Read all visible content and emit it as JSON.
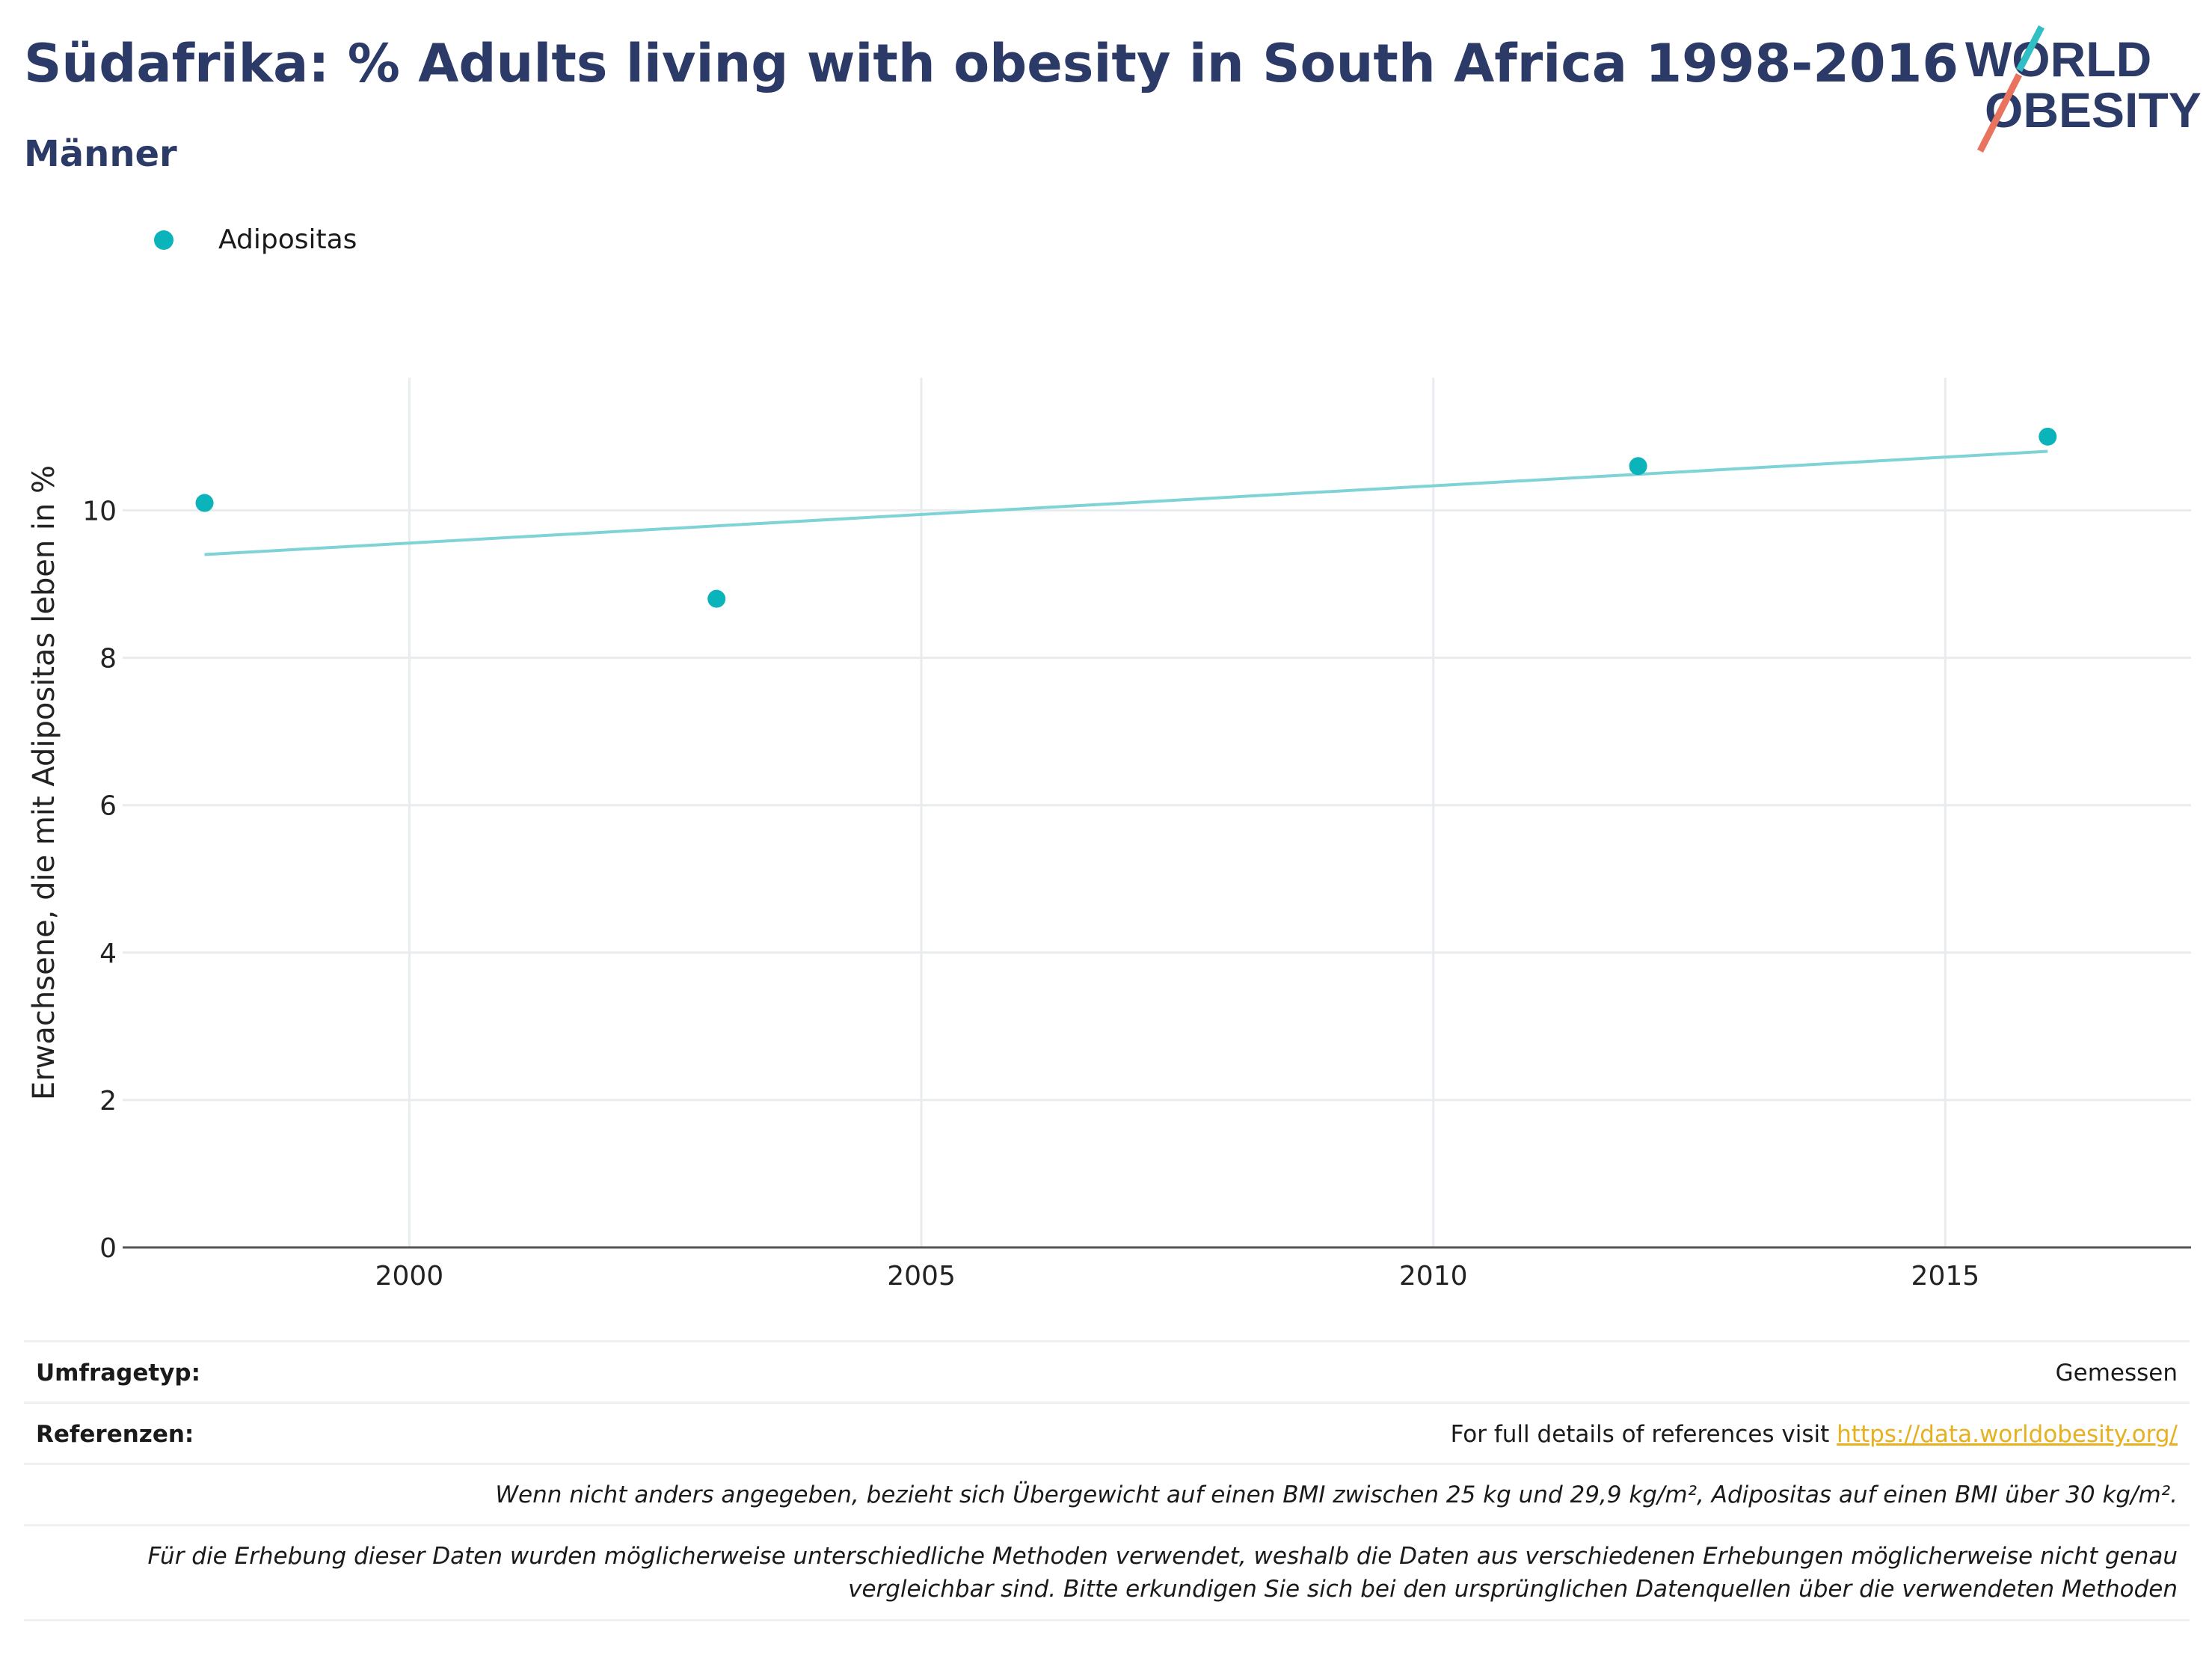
{
  "header": {
    "title": "Südafrika: % Adults living with obesity in South Africa 1998-2016",
    "subtitle": "Männer"
  },
  "logo": {
    "line1": "WORLD",
    "line2": "OBESITY"
  },
  "legend": {
    "label": "Adipositas"
  },
  "colors": {
    "accent": "#0bb3bb",
    "trend": "#7fd3d6",
    "title": "#2b3a67",
    "link": "#e6b01e"
  },
  "chart_data": {
    "type": "scatter",
    "ylabel": "Erwachsene, die mit Adipositas leben in %",
    "xlabel": "",
    "xlim": [
      1997.2,
      2017.4
    ],
    "ylim": [
      0,
      11.8
    ],
    "x_ticks": [
      2000,
      2005,
      2010,
      2015
    ],
    "y_ticks": [
      0,
      2,
      4,
      6,
      8,
      10
    ],
    "grid": true,
    "legend_position": "top-left",
    "series": [
      {
        "name": "Adipositas",
        "x": [
          1998,
          2003,
          2012,
          2016
        ],
        "y": [
          10.1,
          8.8,
          10.6,
          11.0
        ]
      }
    ],
    "trendline": {
      "x": [
        1998,
        2016
      ],
      "y": [
        9.4,
        10.8
      ]
    }
  },
  "footer": {
    "survey_label": "Umfragetyp:",
    "survey_value": "Gemessen",
    "refs_label": "Referenzen:",
    "refs_text": "For full details of references visit",
    "refs_link": "https://data.worldobesity.org/",
    "note1": "Wenn nicht anders angegeben, bezieht sich Übergewicht auf einen BMI zwischen 25 kg und 29,9 kg/m², Adipositas auf einen BMI über 30 kg/m².",
    "note2_line1": "Für die Erhebung dieser Daten wurden möglicherweise unterschiedliche Methoden verwendet, weshalb die Daten aus verschiedenen Erhebungen möglicherweise nicht genau",
    "note2_line2": "vergleichbar sind. Bitte erkundigen Sie sich bei den ursprünglichen Datenquellen über die verwendeten Methoden"
  }
}
